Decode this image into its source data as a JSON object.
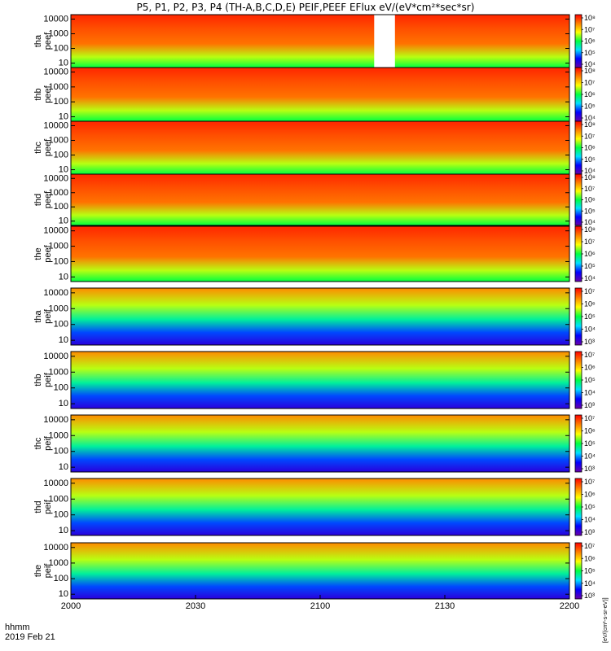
{
  "chart_data": {
    "type": "heatmap",
    "title": "P5, P1, P2, P3, P4 (TH-A,B,C,D,E) PEIF,PEEF EFlux eV/(eV*cm²*sec*sr)",
    "xlabel": "hhmm",
    "date_label": "2019 Feb 21",
    "x_ticks": [
      "2000",
      "2030",
      "2100",
      "2130",
      "2200"
    ],
    "x_range": [
      "2000",
      "2200"
    ],
    "ylabel_unit": "eV",
    "y_scale": "log",
    "y_ticks": [
      "10",
      "100",
      "1000",
      "10000"
    ],
    "y_range": [
      5,
      20000
    ],
    "colorbar_label": "[eV/(cm²-s-sr-eV)]",
    "color_scale": [
      "#6a00a8",
      "#0000ff",
      "#00e0ff",
      "#00ff40",
      "#ffff00",
      "#ff8000",
      "#ff0000"
    ],
    "panels": [
      {
        "probe": "tha",
        "species": "peef",
        "label": [
          "tha",
          "peef"
        ],
        "colorbar_ticks": [
          "10⁴",
          "10⁵",
          "10⁶",
          "10⁷",
          "10⁸"
        ],
        "data_gap": [
          "2113",
          "2118"
        ]
      },
      {
        "probe": "thb",
        "species": "peef",
        "label": [
          "thb",
          "peef"
        ],
        "colorbar_ticks": [
          "10⁴",
          "10⁵",
          "10⁶",
          "10⁷",
          "10⁸"
        ]
      },
      {
        "probe": "thc",
        "species": "peef",
        "label": [
          "thc",
          "peef"
        ],
        "colorbar_ticks": [
          "10⁴",
          "10⁵",
          "10⁶",
          "10⁷",
          "10⁸"
        ]
      },
      {
        "probe": "thd",
        "species": "peef",
        "label": [
          "thd",
          "peef"
        ],
        "colorbar_ticks": [
          "10⁴",
          "10⁵",
          "10⁶",
          "10⁷",
          "10⁸"
        ]
      },
      {
        "probe": "the",
        "species": "peef",
        "label": [
          "the",
          "peef"
        ],
        "colorbar_ticks": [
          "10⁴",
          "10⁵",
          "10⁶",
          "10⁷",
          "10⁸"
        ]
      },
      {
        "probe": "tha",
        "species": "peif",
        "label": [
          "tha",
          "peif"
        ],
        "colorbar_ticks": [
          "10³",
          "10⁴",
          "10⁵",
          "10⁶",
          "10⁷"
        ]
      },
      {
        "probe": "thb",
        "species": "peif",
        "label": [
          "thb",
          "peif"
        ],
        "colorbar_ticks": [
          "10³",
          "10⁴",
          "10⁵",
          "10⁶",
          "10⁷"
        ]
      },
      {
        "probe": "thc",
        "species": "peif",
        "label": [
          "thc",
          "peif"
        ],
        "colorbar_ticks": [
          "10³",
          "10⁴",
          "10⁵",
          "10⁶",
          "10⁷"
        ]
      },
      {
        "probe": "thd",
        "species": "peif",
        "label": [
          "thd",
          "peif"
        ],
        "colorbar_ticks": [
          "10³",
          "10⁴",
          "10⁵",
          "10⁶",
          "10⁷"
        ]
      },
      {
        "probe": "the",
        "species": "peif",
        "label": [
          "the",
          "peif"
        ],
        "colorbar_ticks": [
          "10³",
          "10⁴",
          "10⁵",
          "10⁶",
          "10⁷"
        ]
      }
    ]
  }
}
